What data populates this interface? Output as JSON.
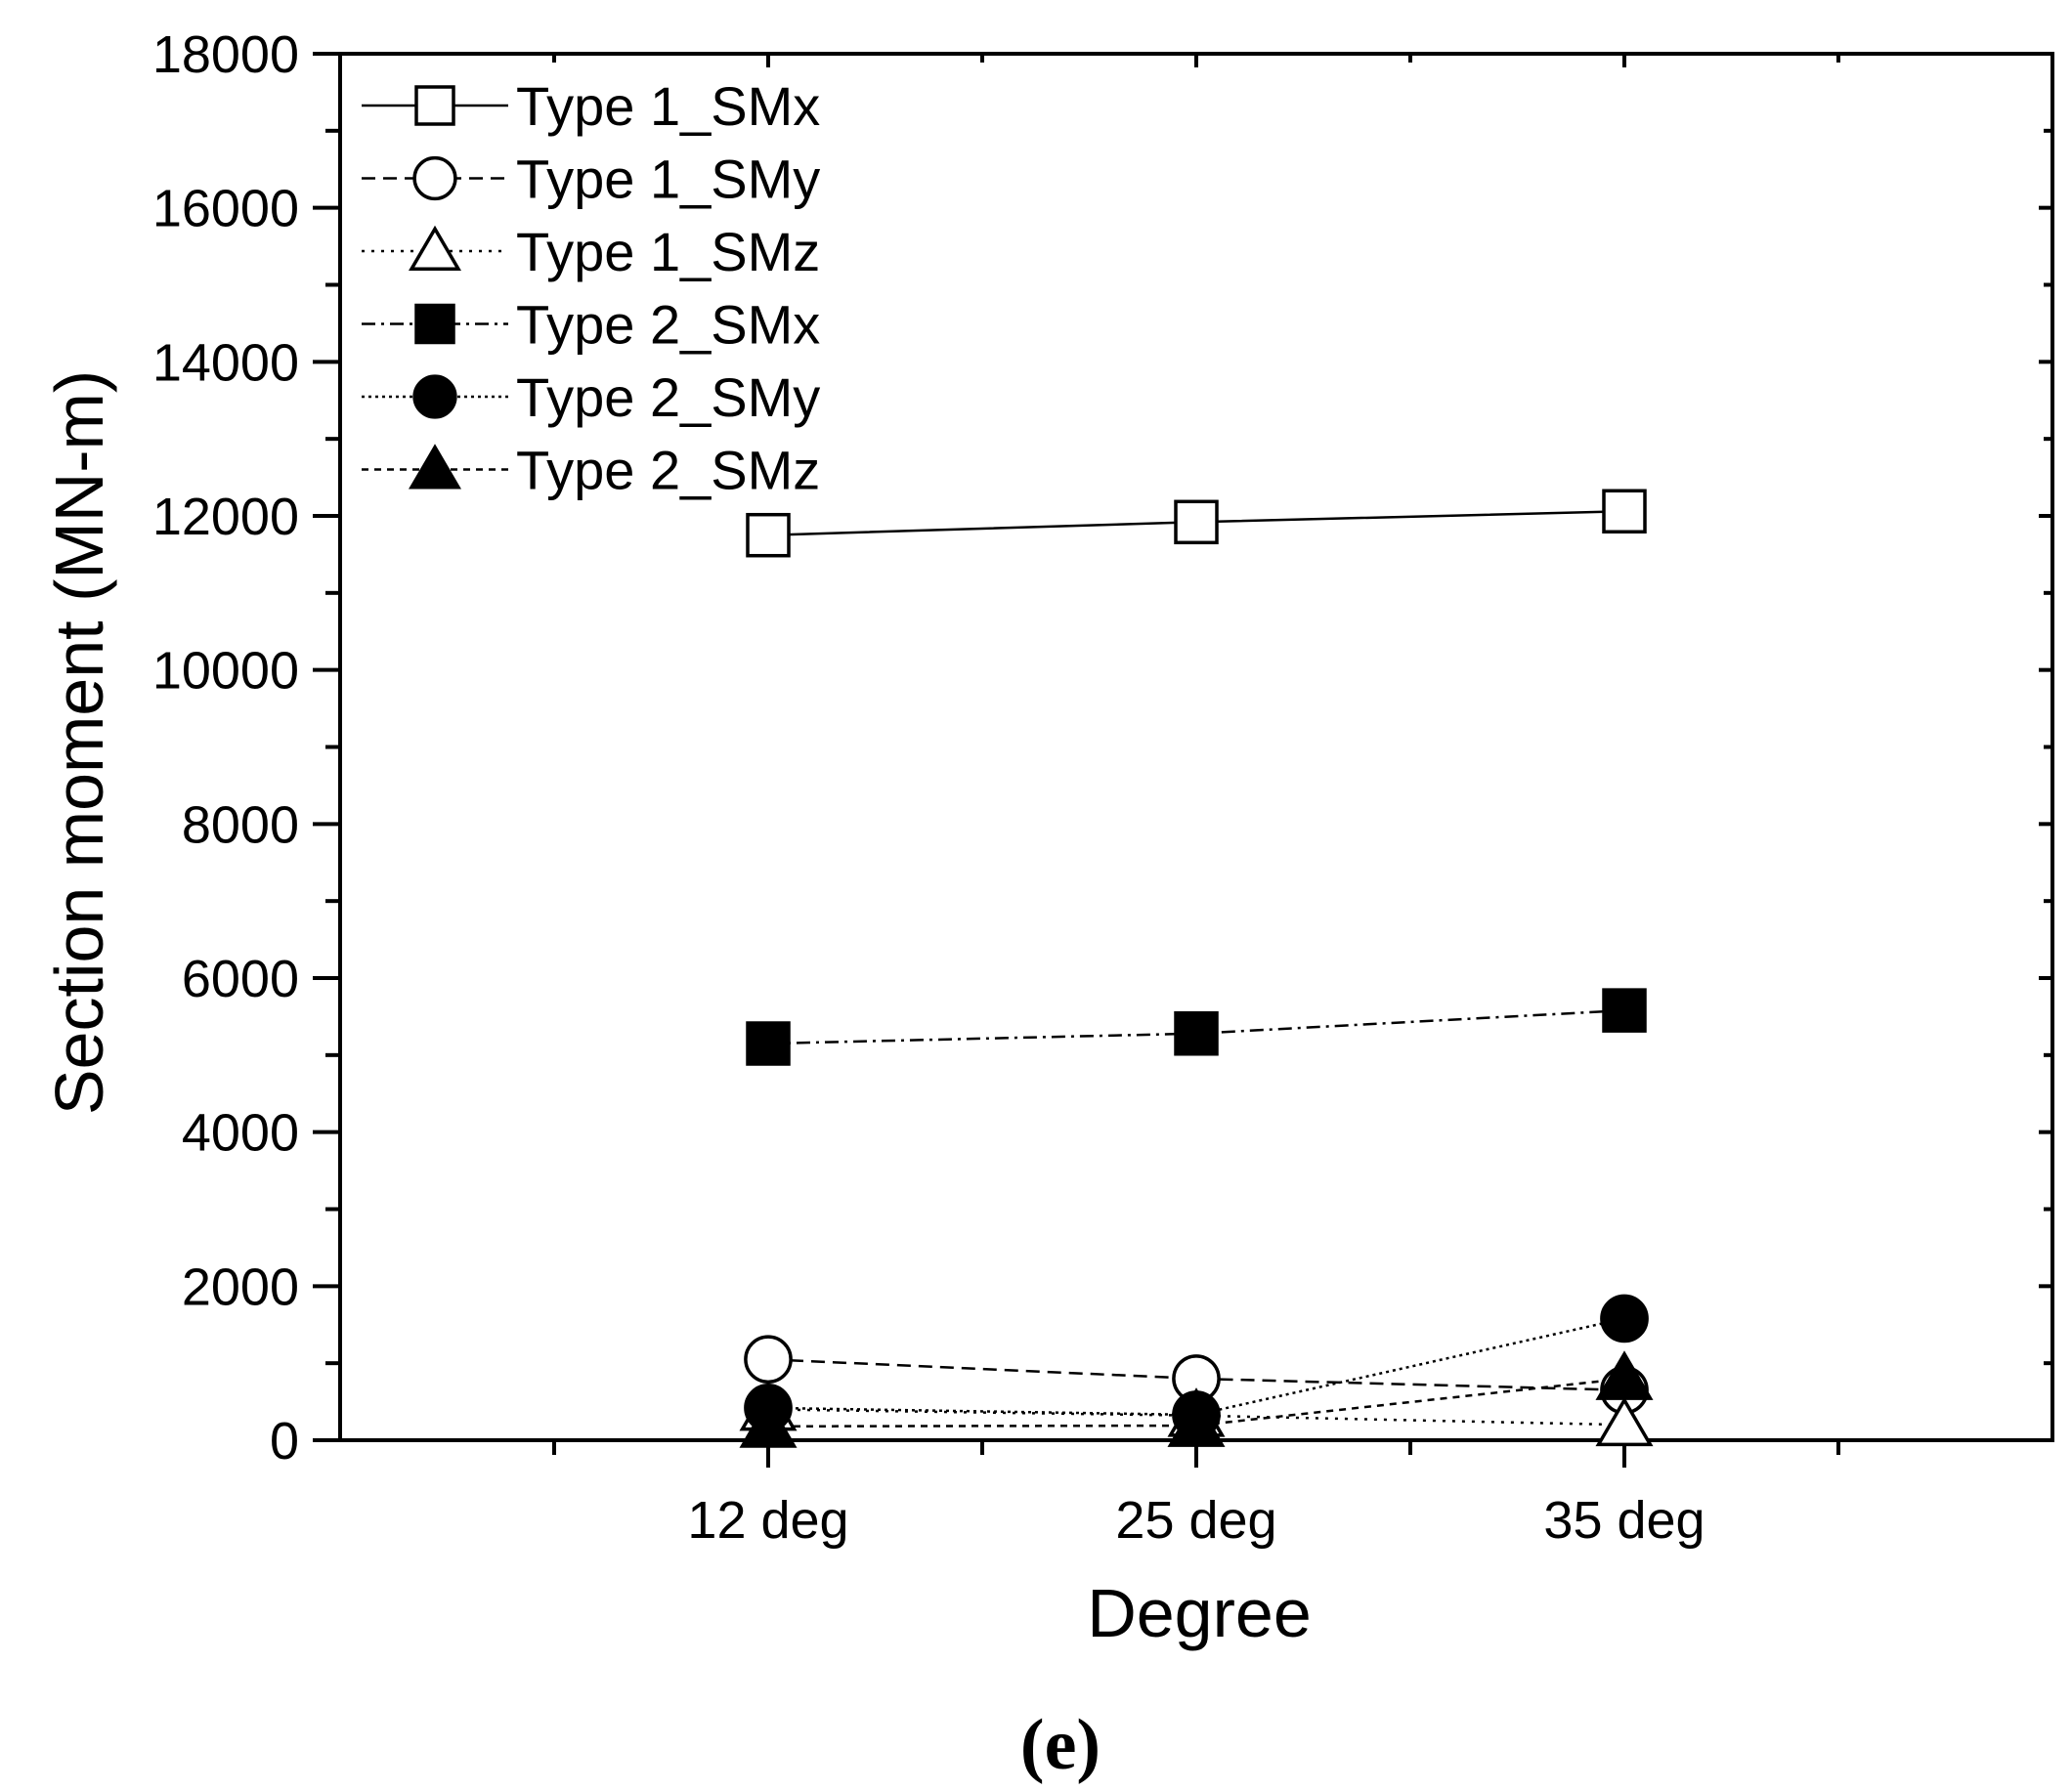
{
  "chart_data": {
    "type": "line",
    "title": "",
    "xlabel": "Degree",
    "ylabel": "Section moment (MN-m)",
    "panel_label": "(e)",
    "categories": [
      "12 deg",
      "25 deg",
      "35 deg"
    ],
    "ylim": [
      0,
      18000
    ],
    "yticks": [
      "0",
      "2000",
      "4000",
      "6000",
      "8000",
      "10000",
      "12000",
      "14000",
      "16000",
      "18000"
    ],
    "grid": false,
    "legend_position": "top-left",
    "series": [
      {
        "name": "Type 1_SMx",
        "values": [
          11750,
          11920,
          12060
        ],
        "marker": "square",
        "filled": false,
        "dash": "solid"
      },
      {
        "name": "Type 1_SMy",
        "values": [
          1050,
          800,
          650
        ],
        "marker": "circle",
        "filled": false,
        "dash": "dashed"
      },
      {
        "name": "Type 1_SMz",
        "values": [
          400,
          320,
          200
        ],
        "marker": "triangle",
        "filled": false,
        "dash": "dotted"
      },
      {
        "name": "Type 2_SMx",
        "values": [
          5150,
          5280,
          5580
        ],
        "marker": "square",
        "filled": true,
        "dash": "dashdot"
      },
      {
        "name": "Type 2_SMy",
        "values": [
          420,
          330,
          1580
        ],
        "marker": "circle",
        "filled": true,
        "dash": "densedot"
      },
      {
        "name": "Type 2_SMz",
        "values": [
          180,
          190,
          800
        ],
        "marker": "triangle",
        "filled": true,
        "dash": "shortdash"
      }
    ]
  }
}
